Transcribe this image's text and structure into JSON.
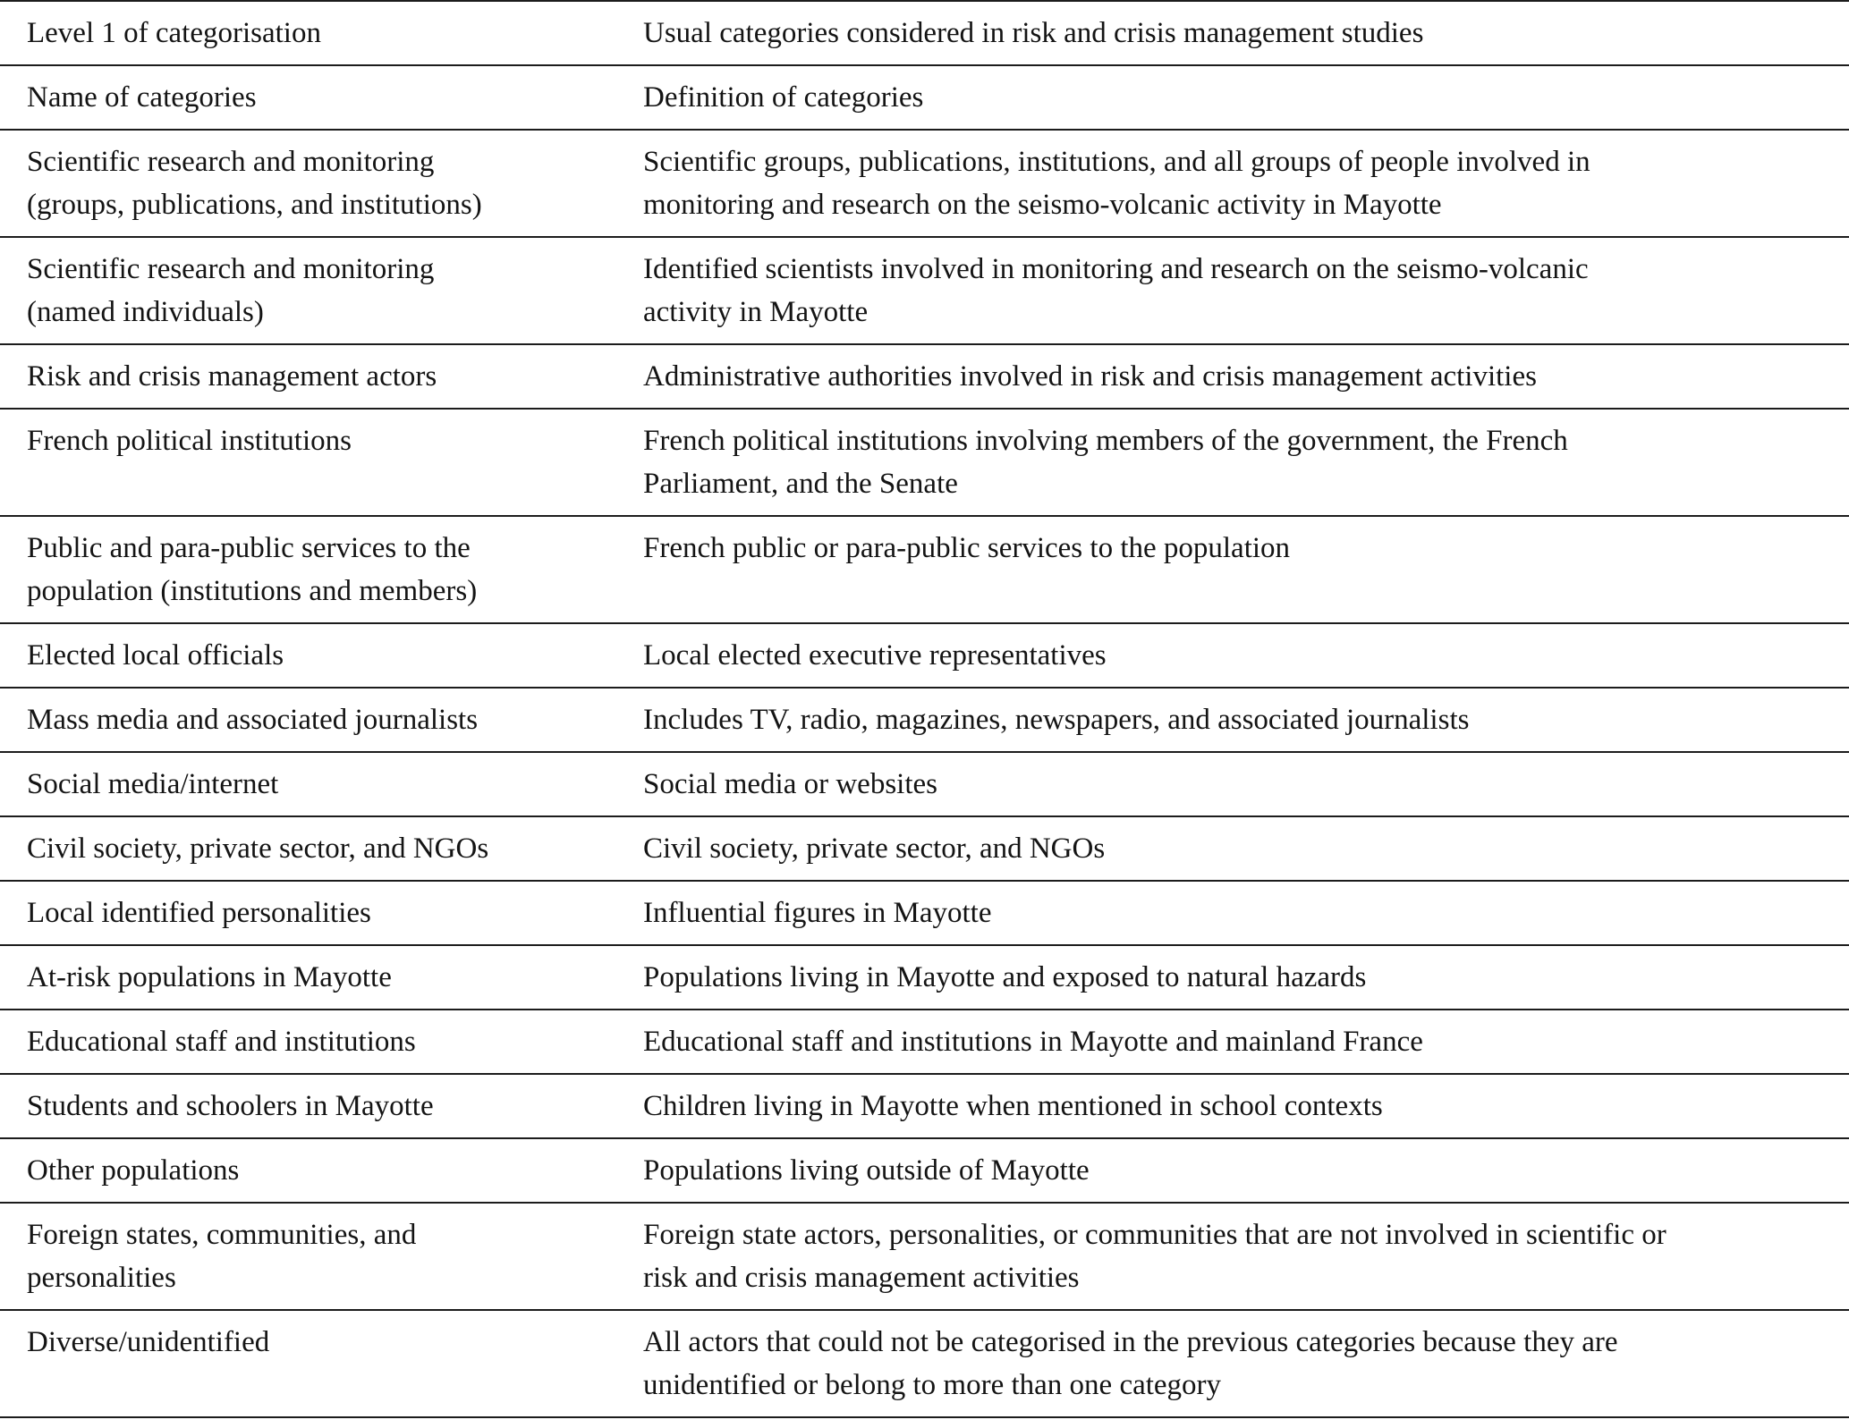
{
  "colors": {
    "background": "#ffffff",
    "text": "#141414",
    "rule": "#1c1c1c"
  },
  "table": {
    "rows": [
      {
        "category": "Level 1 of categorisation",
        "definition": "Usual categories considered in risk and crisis management studies"
      },
      {
        "category": "Name of categories",
        "definition": "Definition of categories"
      },
      {
        "category": "Scientific research and monitoring\n(groups, publications, and institutions)",
        "definition": "Scientific groups, publications, institutions, and all groups of people involved in\nmonitoring and research on the seismo-volcanic activity in Mayotte"
      },
      {
        "category": "Scientific research and monitoring\n(named individuals)",
        "definition": "Identified scientists involved in monitoring and research on the seismo-volcanic\nactivity in Mayotte"
      },
      {
        "category": "Risk and crisis management actors",
        "definition": "Administrative authorities involved in risk and crisis management activities"
      },
      {
        "category": "French political institutions",
        "definition": "French political institutions involving members of the government, the French\nParliament, and the Senate"
      },
      {
        "category": "Public and para-public services to the\npopulation (institutions and members)",
        "definition": "French public or para-public services to the population"
      },
      {
        "category": "Elected local officials",
        "definition": "Local elected executive representatives"
      },
      {
        "category": "Mass media and associated journalists",
        "definition": "Includes TV, radio, magazines, newspapers, and associated journalists"
      },
      {
        "category": "Social media/internet",
        "definition": "Social media or websites"
      },
      {
        "category": "Civil society, private sector, and NGOs",
        "definition": "Civil society, private sector, and NGOs"
      },
      {
        "category": "Local identified personalities",
        "definition": "Influential figures in Mayotte"
      },
      {
        "category": "At-risk populations in Mayotte",
        "definition": "Populations living in Mayotte and exposed to natural hazards"
      },
      {
        "category": "Educational staff and institutions",
        "definition": "Educational staff and institutions in Mayotte and mainland France"
      },
      {
        "category": "Students and schoolers in Mayotte",
        "definition": "Children living in Mayotte when mentioned in school contexts"
      },
      {
        "category": "Other populations",
        "definition": "Populations living outside of Mayotte"
      },
      {
        "category": "Foreign states, communities, and\npersonalities",
        "definition": "Foreign state actors, personalities, or communities that are not involved in scientific or\nrisk and crisis management activities"
      },
      {
        "category": "Diverse/unidentified",
        "definition": "All actors that could not be categorised in the previous categories because they are\nunidentified or belong to more than one category"
      }
    ]
  }
}
